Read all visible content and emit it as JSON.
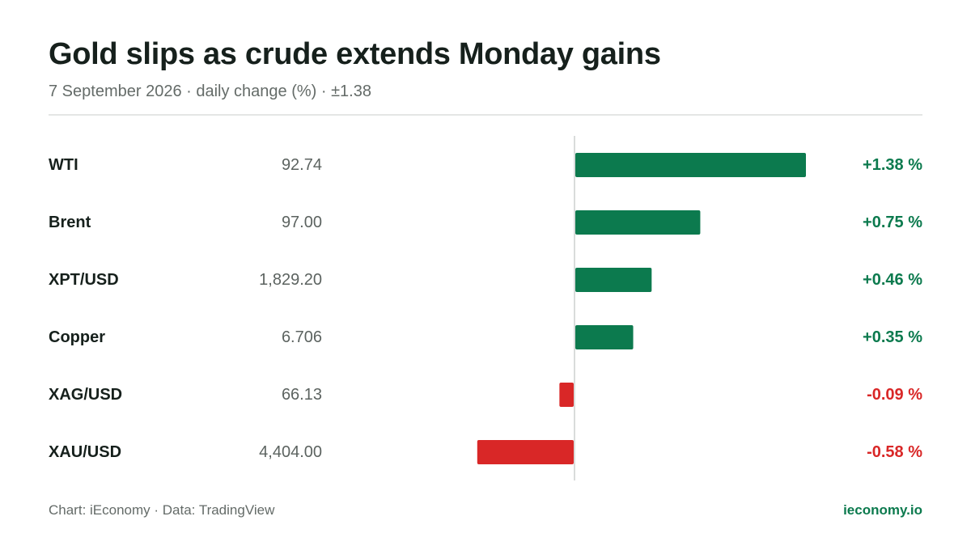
{
  "header": {
    "title": "Gold slips as crude extends Monday gains",
    "subtitle": "7 September 2026 · daily change (%) · ±1.38"
  },
  "footer": {
    "source": "Chart: iEconomy · Data: TradingView",
    "brand": "ieconomy.io"
  },
  "colors": {
    "positive": "#0c7a4e",
    "negative": "#d92727",
    "zero_line": "#d9dcdb"
  },
  "chart_data": {
    "type": "bar",
    "orientation": "horizontal",
    "scale_max_abs": 1.38,
    "categories": [
      "WTI",
      "Brent",
      "XPT/USD",
      "Copper",
      "XAG/USD",
      "XAU/USD"
    ],
    "prices": [
      "92.74",
      "97.00",
      "1,829.20",
      "6.706",
      "66.13",
      "4,404.00"
    ],
    "values": [
      1.38,
      0.75,
      0.46,
      0.35,
      -0.09,
      -0.58
    ],
    "change_labels": [
      "+1.38 %",
      "+0.75 %",
      "+0.46 %",
      "+0.35 %",
      "-0.09 %",
      "-0.58 %"
    ]
  }
}
